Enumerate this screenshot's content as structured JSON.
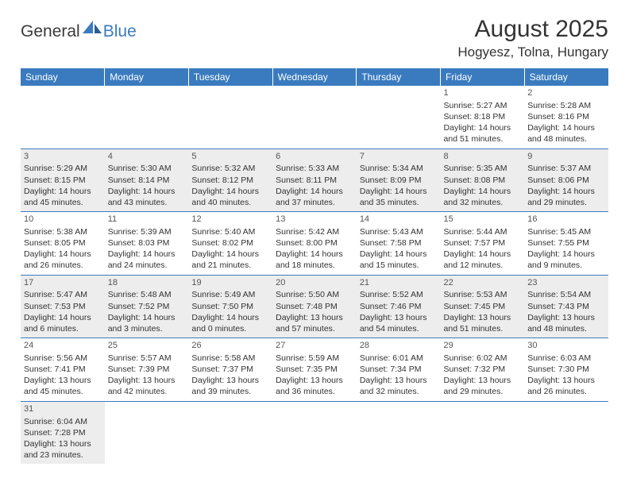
{
  "logo": {
    "general": "General",
    "blue": "Blue"
  },
  "title": "August 2025",
  "location": "Hogyesz, Tolna, Hungary",
  "colors": {
    "header_bg": "#3a7bbf",
    "header_fg": "#ffffff",
    "alt_row_bg": "#ededed",
    "border": "#3a7bbf"
  },
  "weekdays": [
    "Sunday",
    "Monday",
    "Tuesday",
    "Wednesday",
    "Thursday",
    "Friday",
    "Saturday"
  ],
  "weeks": [
    {
      "alt": false,
      "days": [
        null,
        null,
        null,
        null,
        null,
        {
          "n": "1",
          "sr": "Sunrise: 5:27 AM",
          "ss": "Sunset: 8:18 PM",
          "dl": "Daylight: 14 hours and 51 minutes."
        },
        {
          "n": "2",
          "sr": "Sunrise: 5:28 AM",
          "ss": "Sunset: 8:16 PM",
          "dl": "Daylight: 14 hours and 48 minutes."
        }
      ]
    },
    {
      "alt": true,
      "days": [
        {
          "n": "3",
          "sr": "Sunrise: 5:29 AM",
          "ss": "Sunset: 8:15 PM",
          "dl": "Daylight: 14 hours and 45 minutes."
        },
        {
          "n": "4",
          "sr": "Sunrise: 5:30 AM",
          "ss": "Sunset: 8:14 PM",
          "dl": "Daylight: 14 hours and 43 minutes."
        },
        {
          "n": "5",
          "sr": "Sunrise: 5:32 AM",
          "ss": "Sunset: 8:12 PM",
          "dl": "Daylight: 14 hours and 40 minutes."
        },
        {
          "n": "6",
          "sr": "Sunrise: 5:33 AM",
          "ss": "Sunset: 8:11 PM",
          "dl": "Daylight: 14 hours and 37 minutes."
        },
        {
          "n": "7",
          "sr": "Sunrise: 5:34 AM",
          "ss": "Sunset: 8:09 PM",
          "dl": "Daylight: 14 hours and 35 minutes."
        },
        {
          "n": "8",
          "sr": "Sunrise: 5:35 AM",
          "ss": "Sunset: 8:08 PM",
          "dl": "Daylight: 14 hours and 32 minutes."
        },
        {
          "n": "9",
          "sr": "Sunrise: 5:37 AM",
          "ss": "Sunset: 8:06 PM",
          "dl": "Daylight: 14 hours and 29 minutes."
        }
      ]
    },
    {
      "alt": false,
      "days": [
        {
          "n": "10",
          "sr": "Sunrise: 5:38 AM",
          "ss": "Sunset: 8:05 PM",
          "dl": "Daylight: 14 hours and 26 minutes."
        },
        {
          "n": "11",
          "sr": "Sunrise: 5:39 AM",
          "ss": "Sunset: 8:03 PM",
          "dl": "Daylight: 14 hours and 24 minutes."
        },
        {
          "n": "12",
          "sr": "Sunrise: 5:40 AM",
          "ss": "Sunset: 8:02 PM",
          "dl": "Daylight: 14 hours and 21 minutes."
        },
        {
          "n": "13",
          "sr": "Sunrise: 5:42 AM",
          "ss": "Sunset: 8:00 PM",
          "dl": "Daylight: 14 hours and 18 minutes."
        },
        {
          "n": "14",
          "sr": "Sunrise: 5:43 AM",
          "ss": "Sunset: 7:58 PM",
          "dl": "Daylight: 14 hours and 15 minutes."
        },
        {
          "n": "15",
          "sr": "Sunrise: 5:44 AM",
          "ss": "Sunset: 7:57 PM",
          "dl": "Daylight: 14 hours and 12 minutes."
        },
        {
          "n": "16",
          "sr": "Sunrise: 5:45 AM",
          "ss": "Sunset: 7:55 PM",
          "dl": "Daylight: 14 hours and 9 minutes."
        }
      ]
    },
    {
      "alt": true,
      "days": [
        {
          "n": "17",
          "sr": "Sunrise: 5:47 AM",
          "ss": "Sunset: 7:53 PM",
          "dl": "Daylight: 14 hours and 6 minutes."
        },
        {
          "n": "18",
          "sr": "Sunrise: 5:48 AM",
          "ss": "Sunset: 7:52 PM",
          "dl": "Daylight: 14 hours and 3 minutes."
        },
        {
          "n": "19",
          "sr": "Sunrise: 5:49 AM",
          "ss": "Sunset: 7:50 PM",
          "dl": "Daylight: 14 hours and 0 minutes."
        },
        {
          "n": "20",
          "sr": "Sunrise: 5:50 AM",
          "ss": "Sunset: 7:48 PM",
          "dl": "Daylight: 13 hours and 57 minutes."
        },
        {
          "n": "21",
          "sr": "Sunrise: 5:52 AM",
          "ss": "Sunset: 7:46 PM",
          "dl": "Daylight: 13 hours and 54 minutes."
        },
        {
          "n": "22",
          "sr": "Sunrise: 5:53 AM",
          "ss": "Sunset: 7:45 PM",
          "dl": "Daylight: 13 hours and 51 minutes."
        },
        {
          "n": "23",
          "sr": "Sunrise: 5:54 AM",
          "ss": "Sunset: 7:43 PM",
          "dl": "Daylight: 13 hours and 48 minutes."
        }
      ]
    },
    {
      "alt": false,
      "days": [
        {
          "n": "24",
          "sr": "Sunrise: 5:56 AM",
          "ss": "Sunset: 7:41 PM",
          "dl": "Daylight: 13 hours and 45 minutes."
        },
        {
          "n": "25",
          "sr": "Sunrise: 5:57 AM",
          "ss": "Sunset: 7:39 PM",
          "dl": "Daylight: 13 hours and 42 minutes."
        },
        {
          "n": "26",
          "sr": "Sunrise: 5:58 AM",
          "ss": "Sunset: 7:37 PM",
          "dl": "Daylight: 13 hours and 39 minutes."
        },
        {
          "n": "27",
          "sr": "Sunrise: 5:59 AM",
          "ss": "Sunset: 7:35 PM",
          "dl": "Daylight: 13 hours and 36 minutes."
        },
        {
          "n": "28",
          "sr": "Sunrise: 6:01 AM",
          "ss": "Sunset: 7:34 PM",
          "dl": "Daylight: 13 hours and 32 minutes."
        },
        {
          "n": "29",
          "sr": "Sunrise: 6:02 AM",
          "ss": "Sunset: 7:32 PM",
          "dl": "Daylight: 13 hours and 29 minutes."
        },
        {
          "n": "30",
          "sr": "Sunrise: 6:03 AM",
          "ss": "Sunset: 7:30 PM",
          "dl": "Daylight: 13 hours and 26 minutes."
        }
      ]
    },
    {
      "alt": true,
      "last": true,
      "days": [
        {
          "n": "31",
          "sr": "Sunrise: 6:04 AM",
          "ss": "Sunset: 7:28 PM",
          "dl": "Daylight: 13 hours and 23 minutes."
        },
        null,
        null,
        null,
        null,
        null,
        null
      ]
    }
  ]
}
